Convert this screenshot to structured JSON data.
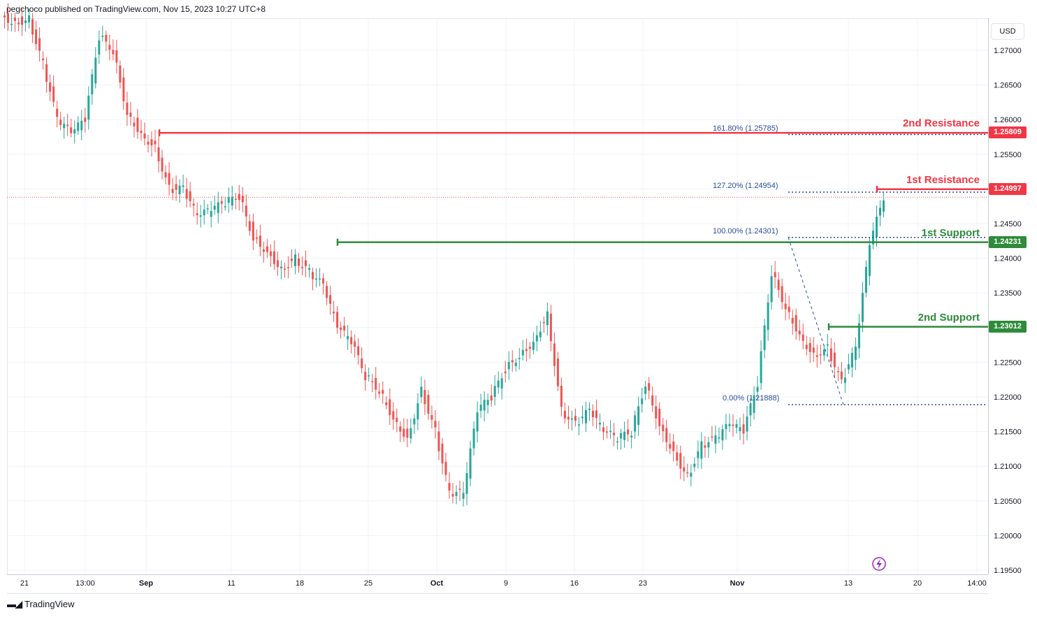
{
  "header": {
    "published_text": "pegchoco published on TradingView.com, Nov 15, 2023 10:27 UTC+8"
  },
  "price_axis": {
    "currency": "USD",
    "ticks": [
      "1.27000",
      "1.26500",
      "1.26000",
      "1.25500",
      "1.25000",
      "1.24500",
      "1.24000",
      "1.23500",
      "1.23000",
      "1.22500",
      "1.22000",
      "1.21500",
      "1.21000",
      "1.20500",
      "1.20000",
      "1.19500"
    ]
  },
  "time_axis": {
    "ticks": [
      "21",
      "13:00",
      "Sep",
      "11",
      "18",
      "25",
      "Oct",
      "9",
      "16",
      "23",
      "Nov",
      "13",
      "20",
      "14:00"
    ]
  },
  "levels": {
    "resistance_2": {
      "label": "2nd Resistance",
      "price_tag": "1.25809",
      "price": 1.25809,
      "color": "#f23645"
    },
    "resistance_1": {
      "label": "1st Resistance",
      "price_tag": "1.24997",
      "price": 1.24997,
      "color": "#f23645"
    },
    "support_1": {
      "label": "1st Support",
      "price_tag": "1.24231",
      "price": 1.24231,
      "color": "#2e8b3a"
    },
    "support_2": {
      "label": "2nd Support",
      "price_tag": "1.23012",
      "price": 1.23012,
      "color": "#2e8b3a"
    }
  },
  "fib_levels": [
    {
      "label": "161.80% (1.25785)",
      "price": 1.25785
    },
    {
      "label": "127.20% (1.24954)",
      "price": 1.24954
    },
    {
      "label": "100.00% (1.24301)",
      "price": 1.24301
    },
    {
      "label": "0.00% (1.21888)",
      "price": 1.21888
    }
  ],
  "footer": {
    "brand": "TradingView"
  },
  "colors": {
    "up": "#26a69a",
    "down": "#ef5350",
    "grid": "#f0f3fa",
    "fib": "#2a4d9b",
    "current_price_line": "#ef5350"
  },
  "chart_data": {
    "type": "candlestick",
    "symbol_currency": "USD",
    "ylim": [
      1.195,
      1.279
    ],
    "current_price": 1.2488,
    "series": [
      {
        "name": "",
        "x": [
          "Aug 21",
          "Aug 22",
          "Aug 23",
          "Aug 24",
          "Aug 25",
          "Aug 28",
          "Aug 29",
          "Aug 30",
          "Aug 31",
          "Sep 1",
          "Sep 4",
          "Sep 5",
          "Sep 6",
          "Sep 7",
          "Sep 8",
          "Sep 11",
          "Sep 12",
          "Sep 13",
          "Sep 14",
          "Sep 15",
          "Sep 18",
          "Sep 19",
          "Sep 20",
          "Sep 21",
          "Sep 22",
          "Sep 25",
          "Sep 26",
          "Sep 27",
          "Sep 28",
          "Sep 29",
          "Oct 2",
          "Oct 3",
          "Oct 4",
          "Oct 5",
          "Oct 6",
          "Oct 9",
          "Oct 10",
          "Oct 11",
          "Oct 12",
          "Oct 13",
          "Oct 16",
          "Oct 17",
          "Oct 18",
          "Oct 19",
          "Oct 20",
          "Oct 23",
          "Oct 24",
          "Oct 25",
          "Oct 26",
          "Oct 27",
          "Oct 30",
          "Oct 31",
          "Nov 1",
          "Nov 2",
          "Nov 3",
          "Nov 6",
          "Nov 7",
          "Nov 8",
          "Nov 9",
          "Nov 10",
          "Nov 13",
          "Nov 14",
          "Nov 15"
        ],
        "close": [
          1.274,
          1.2745,
          1.268,
          1.26,
          1.258,
          1.26,
          1.272,
          1.27,
          1.261,
          1.258,
          1.256,
          1.25,
          1.25,
          1.246,
          1.247,
          1.248,
          1.249,
          1.243,
          1.241,
          1.2385,
          1.24,
          1.238,
          1.236,
          1.23,
          1.228,
          1.223,
          1.221,
          1.217,
          1.214,
          1.221,
          1.215,
          1.206,
          1.206,
          1.218,
          1.22,
          1.224,
          1.226,
          1.228,
          1.232,
          1.218,
          1.216,
          1.218,
          1.215,
          1.214,
          1.215,
          1.222,
          1.216,
          1.212,
          1.2085,
          1.213,
          1.214,
          1.216,
          1.215,
          1.222,
          1.238,
          1.233,
          1.229,
          1.226,
          1.227,
          1.222,
          1.227,
          1.242,
          1.2488
        ]
      }
    ],
    "annotations": [
      "2nd Resistance 1.25809",
      "1st Resistance 1.24997",
      "1st Support 1.24231",
      "2nd Support 1.23012"
    ]
  }
}
